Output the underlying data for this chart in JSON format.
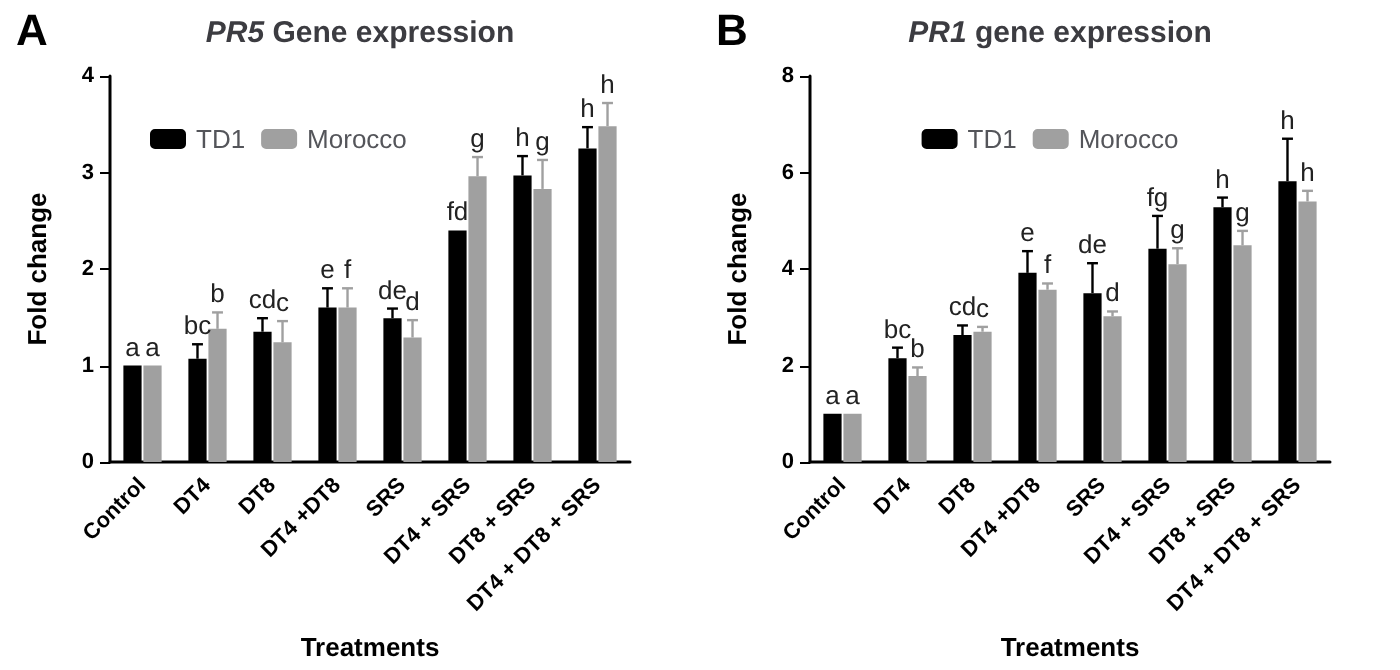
{
  "chart_data": [
    {
      "type": "bar",
      "title": "PR5 Gene expression",
      "xlabel": "Treatments",
      "ylabel": "Fold change",
      "annotations": [
        "A"
      ],
      "categories": [
        "Control",
        "DT4",
        "DT8",
        "DT4 +DT8",
        "SRS",
        "DT4 + SRS",
        "DT8 + SRS",
        "DT4 + DT8 + SRS"
      ],
      "ylim": [
        0,
        4
      ],
      "yticks": [
        0,
        1,
        2,
        3,
        4
      ],
      "legend": "top left",
      "grid": false,
      "series": [
        {
          "name": "TD1",
          "color": "#000000",
          "values": [
            1.0,
            1.07,
            1.35,
            1.6,
            1.49,
            2.4,
            2.97,
            3.25
          ],
          "errors": [
            0,
            0.15,
            0.14,
            0.2,
            0.1,
            0,
            0.2,
            0.22
          ],
          "value_labels": [
            "a",
            "bc",
            "cd",
            "e",
            "de",
            "fd",
            "h",
            "h"
          ]
        },
        {
          "name": "Morocco",
          "color": "#a0a0a0",
          "values": [
            1.0,
            1.38,
            1.24,
            1.6,
            1.29,
            2.96,
            2.83,
            3.48
          ],
          "errors": [
            0,
            0.17,
            0.22,
            0.2,
            0.18,
            0.2,
            0.3,
            0.24
          ],
          "value_labels": [
            "a",
            "b",
            "c",
            "f",
            "d",
            "g",
            "g",
            "h"
          ]
        }
      ]
    },
    {
      "type": "bar",
      "title": "PR1 gene expression",
      "xlabel": "Treatments",
      "ylabel": "Fold change",
      "annotations": [
        "B"
      ],
      "categories": [
        "Control",
        "DT4",
        "DT8",
        "DT4 +DT8",
        "SRS",
        "DT4 + SRS",
        "DT8 + SRS",
        "DT4 + DT8 + SRS"
      ],
      "ylim": [
        0,
        8
      ],
      "yticks": [
        0,
        2,
        4,
        6,
        8
      ],
      "legend": "top",
      "grid": false,
      "series": [
        {
          "name": "TD1",
          "color": "#000000",
          "values": [
            1.0,
            2.15,
            2.63,
            3.92,
            3.5,
            4.42,
            5.28,
            5.82
          ],
          "errors": [
            0,
            0.22,
            0.2,
            0.45,
            0.62,
            0.68,
            0.2,
            0.88
          ],
          "value_labels": [
            "a",
            "bc",
            "cd",
            "e",
            "de",
            "fg",
            "h",
            "h"
          ]
        },
        {
          "name": "Morocco",
          "color": "#a0a0a0",
          "values": [
            1.0,
            1.78,
            2.7,
            3.57,
            3.02,
            4.1,
            4.49,
            5.4
          ],
          "errors": [
            0,
            0.18,
            0.1,
            0.13,
            0.1,
            0.33,
            0.3,
            0.22
          ],
          "value_labels": [
            "a",
            "b",
            "c",
            "f",
            "d",
            "g",
            "g",
            "h"
          ]
        }
      ]
    }
  ]
}
